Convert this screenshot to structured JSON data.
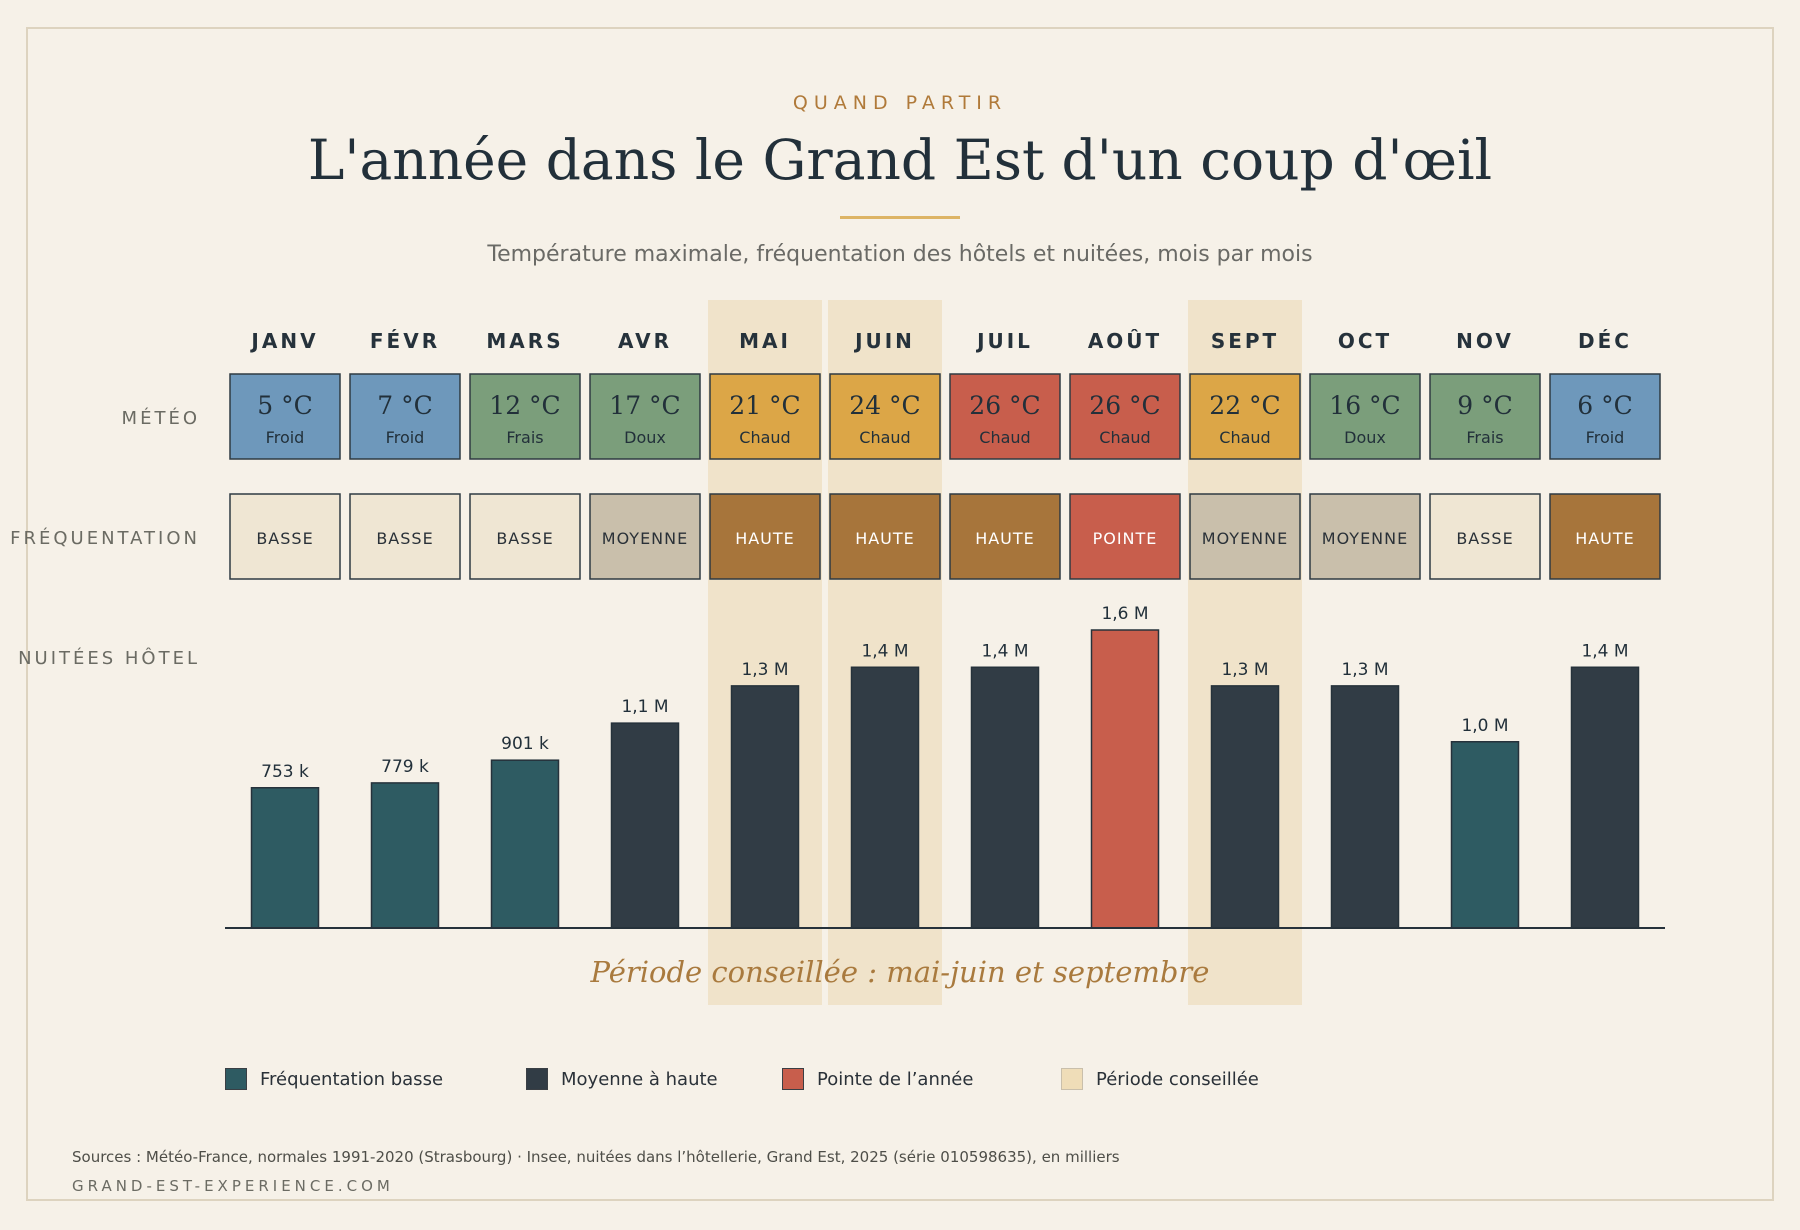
{
  "header": {
    "eyebrow": "QUAND PARTIR",
    "title": "L'année dans le Grand Est d'un coup d'œil",
    "subtitle": "Température maximale, fréquentation des hôtels et nuitées, mois par mois"
  },
  "row_labels": {
    "meteo": "MÉTÉO",
    "frequentation": "FRÉQUENTATION",
    "nuitees": "NUITÉES HÔTEL"
  },
  "chart_data": {
    "type": "bar",
    "categories": [
      "JANV",
      "FÉVR",
      "MARS",
      "AVR",
      "MAI",
      "JUIN",
      "JUIL",
      "AOÛT",
      "SEPT",
      "OCT",
      "NOV",
      "DÉC"
    ],
    "values": [
      753,
      779,
      901,
      1100,
      1300,
      1400,
      1400,
      1600,
      1300,
      1300,
      1000,
      1400
    ],
    "value_labels": [
      "753 k",
      "779 k",
      "901 k",
      "1,1 M",
      "1,3 M",
      "1,4 M",
      "1,4 M",
      "1,6 M",
      "1,3 M",
      "1,3 M",
      "1,0 M",
      "1,4 M"
    ],
    "bar_category": [
      "basse",
      "basse",
      "basse",
      "haute",
      "haute",
      "haute",
      "haute",
      "pointe",
      "haute",
      "haute",
      "basse",
      "haute"
    ],
    "ylim": [
      0,
      1600
    ],
    "unit": "milliers de nuitées",
    "temperatures": [
      "5 °C",
      "7 °C",
      "12 °C",
      "17 °C",
      "21 °C",
      "24 °C",
      "26 °C",
      "26 °C",
      "22 °C",
      "16 °C",
      "9 °C",
      "6 °C"
    ],
    "temperature_labels": [
      "Froid",
      "Froid",
      "Frais",
      "Doux",
      "Chaud",
      "Chaud",
      "Chaud",
      "Chaud",
      "Chaud",
      "Doux",
      "Frais",
      "Froid"
    ],
    "frequentation": [
      "BASSE",
      "BASSE",
      "BASSE",
      "MOYENNE",
      "HAUTE",
      "HAUTE",
      "HAUTE",
      "POINTE",
      "MOYENNE",
      "MOYENNE",
      "BASSE",
      "HAUTE"
    ],
    "recommended_months": [
      4,
      5,
      8
    ],
    "recommended_caption": "Période conseillée : mai-juin et septembre",
    "legend": [
      {
        "key": "basse",
        "label": "Fréquentation basse"
      },
      {
        "key": "haute",
        "label": "Moyenne à haute"
      },
      {
        "key": "pointe",
        "label": "Pointe de l’année"
      },
      {
        "key": "conseille",
        "label": "Période conseillée"
      }
    ],
    "legend_placement": "bottom",
    "grid": false
  },
  "colors": {
    "temp": {
      "Froid": "#6e98bb",
      "Frais": "#7b9e7b",
      "Doux": "#7b9e7b",
      "Chaud": "#dca647"
    },
    "temp_hot": "#c85e4c",
    "freq_fill": {
      "BASSE": "#efe6d3",
      "MOYENNE": "#c9bfab",
      "HAUTE": "#a7753b",
      "POINTE": "#c85e4c"
    },
    "freq_text": {
      "BASSE": "#2a3138",
      "MOYENNE": "#2a3138",
      "HAUTE": "#ffffff",
      "POINTE": "#ffffff"
    },
    "bar": {
      "basse": "#2e5b62",
      "haute": "#313c45",
      "pointe": "#c85e4c"
    },
    "highlight": "#f0e3ca",
    "caption": "#a97a3e",
    "legend": {
      "basse": "#2e5b62",
      "haute": "#313c45",
      "pointe": "#c85e4c",
      "conseille": "#efddb8"
    }
  },
  "footer": {
    "sources": "Sources : Météo-France, normales 1991-2020 (Strasbourg) · Insee, nuitées dans l’hôtellerie, Grand Est, 2025 (série 010598635), en milliers",
    "site": "GRAND-EST-EXPERIENCE.COM"
  }
}
